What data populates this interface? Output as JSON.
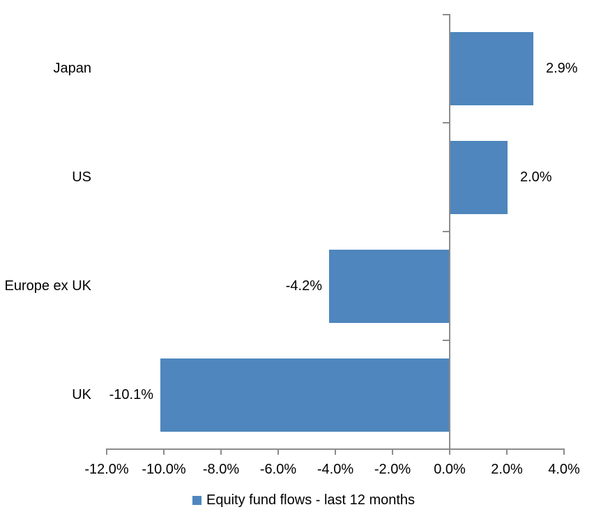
{
  "chart_data": {
    "type": "bar",
    "orientation": "horizontal",
    "title": "",
    "categories": [
      "Japan",
      "US",
      "Europe ex UK",
      "UK"
    ],
    "series": [
      {
        "name": "Equity fund flows - last 12 months",
        "values": [
          2.9,
          2.0,
          -4.2,
          -10.1
        ],
        "value_labels": [
          "2.9%",
          "2.0%",
          "-4.2%",
          "-10.1%"
        ]
      }
    ],
    "xlabel": "",
    "ylabel": "",
    "xlim": [
      -12.0,
      4.0
    ],
    "x_tick_values": [
      -12,
      -10,
      -8,
      -6,
      -4,
      -2,
      0,
      2,
      4
    ],
    "x_tick_labels": [
      "-12.0%",
      "-10.0%",
      "-8.0%",
      "-6.0%",
      "-4.0%",
      "-2.0%",
      "0.0%",
      "2.0%",
      "4.0%"
    ],
    "grid": false,
    "legend_position": "bottom",
    "colors": {
      "bar": "#4E86BD",
      "axis": "#8C8C8C",
      "text": "#000000",
      "background": "#FFFFFF"
    }
  },
  "legend": {
    "label": "Equity fund flows - last 12 months"
  }
}
